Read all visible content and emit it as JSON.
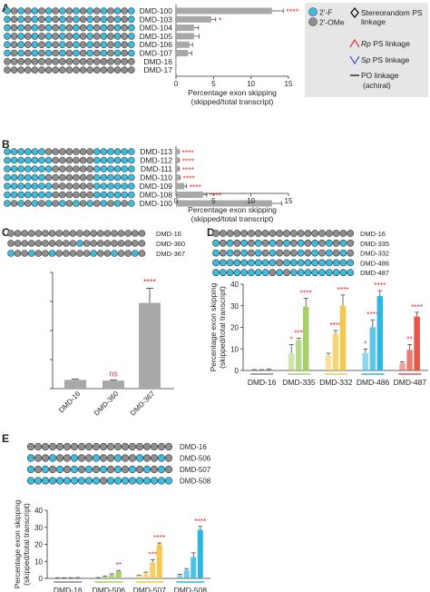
{
  "colors": {
    "fluoro": "#3bbde0",
    "ome": "#8f8f8f",
    "gray_bar": "#a8a8a8",
    "green": "#a6cf6a",
    "yellow": "#f5c84c",
    "blue": "#2db7e0",
    "red": "#e8564a",
    "star": "#e3342f",
    "legend_bg": "#e6e6e6"
  },
  "legend": {
    "f_label": "2'-F",
    "ome_label": "2'-OMe",
    "stereo_label": "Stereorandom PS",
    "stereo_label2": "linkage",
    "rp_prefix": "Rp",
    "rp_suffix": " PS linkage",
    "sp_prefix": "Sp",
    "sp_suffix": " PS linkage",
    "po_label": "PO linkage",
    "po_label2": "(achiral)"
  },
  "chart_data": [
    {
      "panel": "A",
      "type": "bar",
      "orientation": "horizontal",
      "categories": [
        "DMD-100",
        "DMD-103",
        "DMD-104",
        "DMD-105",
        "DMD-106",
        "DMD-107",
        "DMD-16",
        "DMD-17"
      ],
      "values": [
        12.8,
        4.7,
        2.4,
        2.4,
        1.8,
        1.6,
        0.05,
        0.05
      ],
      "errors": [
        1.5,
        0.6,
        0.6,
        0.7,
        0.4,
        0.5,
        0,
        0
      ],
      "stars": [
        "****",
        "*",
        "",
        "",
        "",
        "",
        "",
        ""
      ],
      "xlim": [
        0,
        15
      ],
      "xticks": [
        "0",
        "5",
        "10",
        "15"
      ],
      "xlabel": "Percentage exon skipping",
      "xlabel2": "(skipped/total transcript)"
    },
    {
      "panel": "B",
      "type": "bar",
      "orientation": "horizontal",
      "categories": [
        "DMD-113",
        "DMD-112",
        "DMD-111",
        "DMD-110",
        "DMD-109",
        "DMD-108",
        "DMD-100"
      ],
      "values": [
        0.3,
        0.35,
        0.35,
        0.45,
        1.1,
        3.6,
        12.8
      ],
      "errors": [
        0.1,
        0.1,
        0.1,
        0.1,
        0.3,
        0.5,
        1.3
      ],
      "stars": [
        "****",
        "****",
        "****",
        "****",
        "****",
        "****",
        ""
      ],
      "xlim": [
        0,
        15
      ],
      "xticks": [
        "0",
        "5",
        "10",
        "15"
      ],
      "xlabel": "Percentage exon skipping",
      "xlabel2": "(skipped/total transcript)"
    },
    {
      "panel": "C",
      "type": "bar",
      "categories": [
        "DMD-16",
        "DMD-360",
        "DMD-367"
      ],
      "values": [
        0.6,
        0.55,
        5.9
      ],
      "errors": [
        0.05,
        0.05,
        1.0
      ],
      "stars": [
        "",
        "ns",
        "****"
      ],
      "ylim": [
        0,
        8
      ]
    },
    {
      "panel": "D",
      "type": "bar",
      "groups": [
        "DMD-16",
        "DMD-335",
        "DMD-332",
        "DMD-486",
        "DMD-487"
      ],
      "values": [
        [
          0.3,
          0.3,
          0.5
        ],
        [
          8,
          14,
          29.5
        ],
        [
          7,
          17,
          30
        ],
        [
          8,
          20,
          34.5
        ],
        [
          3.5,
          9.5,
          25
        ]
      ],
      "errors": [
        [
          0.1,
          0.1,
          0.1
        ],
        [
          4,
          1,
          4
        ],
        [
          1,
          1.5,
          5
        ],
        [
          2,
          3.5,
          2.5
        ],
        [
          0.5,
          2.5,
          2
        ]
      ],
      "stars": [
        [
          "",
          "",
          ""
        ],
        [
          "*",
          "***",
          "****"
        ],
        [
          "",
          "****",
          "****"
        ],
        [
          "*",
          "****",
          "****"
        ],
        [
          "",
          "**",
          "****"
        ]
      ],
      "ylim": [
        0,
        40
      ],
      "yticks": [
        "0",
        "10",
        "20",
        "30",
        "40"
      ],
      "ylabel": "Percentage exon skipping",
      "ylabel2": "(skipped/total transcript)",
      "row_labels": [
        "DMD-16",
        "DMD-335",
        "DMD-332",
        "DMD-486",
        "DMD-487"
      ]
    },
    {
      "panel": "E",
      "type": "bar",
      "groups": [
        "DMD-16",
        "DMD-506",
        "DMD-507",
        "DMD-508"
      ],
      "values": [
        [
          0.3,
          0.3,
          0.3,
          0.4
        ],
        [
          0.4,
          1.1,
          2.2,
          4.2
        ],
        [
          1.5,
          3,
          9.5,
          20
        ],
        [
          2,
          5,
          12.5,
          28.5
        ]
      ],
      "errors": [
        [
          0.1,
          0.1,
          0.1,
          0.1
        ],
        [
          0.1,
          0.3,
          0.5,
          0.5
        ],
        [
          0.3,
          0.7,
          1.5,
          0.8
        ],
        [
          0.4,
          0.8,
          2.5,
          2
        ]
      ],
      "stars": [
        [
          "",
          "",
          "",
          ""
        ],
        [
          "",
          "",
          "",
          "**"
        ],
        [
          "",
          "",
          "***",
          "****"
        ],
        [
          "",
          "",
          "",
          "****"
        ]
      ],
      "ylim": [
        0,
        40
      ],
      "yticks": [
        "0",
        "10",
        "20",
        "30",
        "40"
      ],
      "ylabel": "Percentage exon skipping",
      "ylabel2": "(skipped/total transcript)",
      "row_labels": [
        "DMD-16",
        "DMD-506",
        "DMD-507",
        "DMD-508"
      ]
    }
  ],
  "panel_labels": [
    "A",
    "B",
    "C",
    "D",
    "E"
  ]
}
